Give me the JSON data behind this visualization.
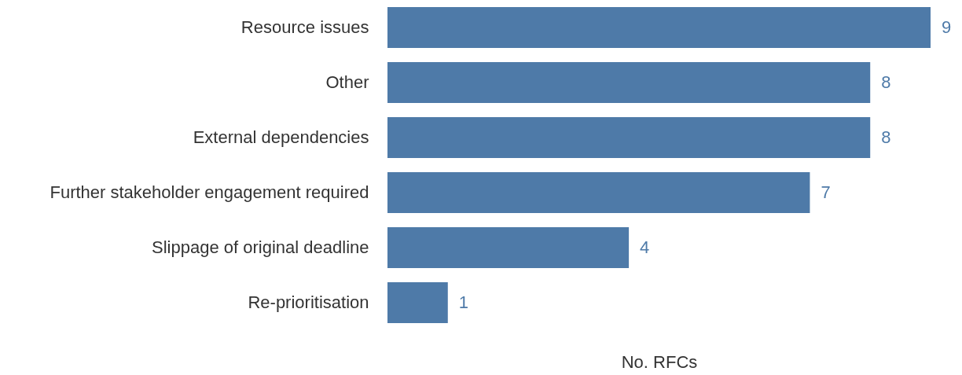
{
  "chart_data": {
    "type": "bar",
    "orientation": "horizontal",
    "xlabel": "No. RFCs",
    "categories": [
      "Resource issues",
      "Other",
      "External dependencies",
      "Further stakeholder engagement required",
      "Slippage of original deadline",
      "Re-prioritisation"
    ],
    "values": [
      9,
      8,
      8,
      7,
      4,
      1
    ],
    "color": "#4e7aa8",
    "data_labels": true
  }
}
